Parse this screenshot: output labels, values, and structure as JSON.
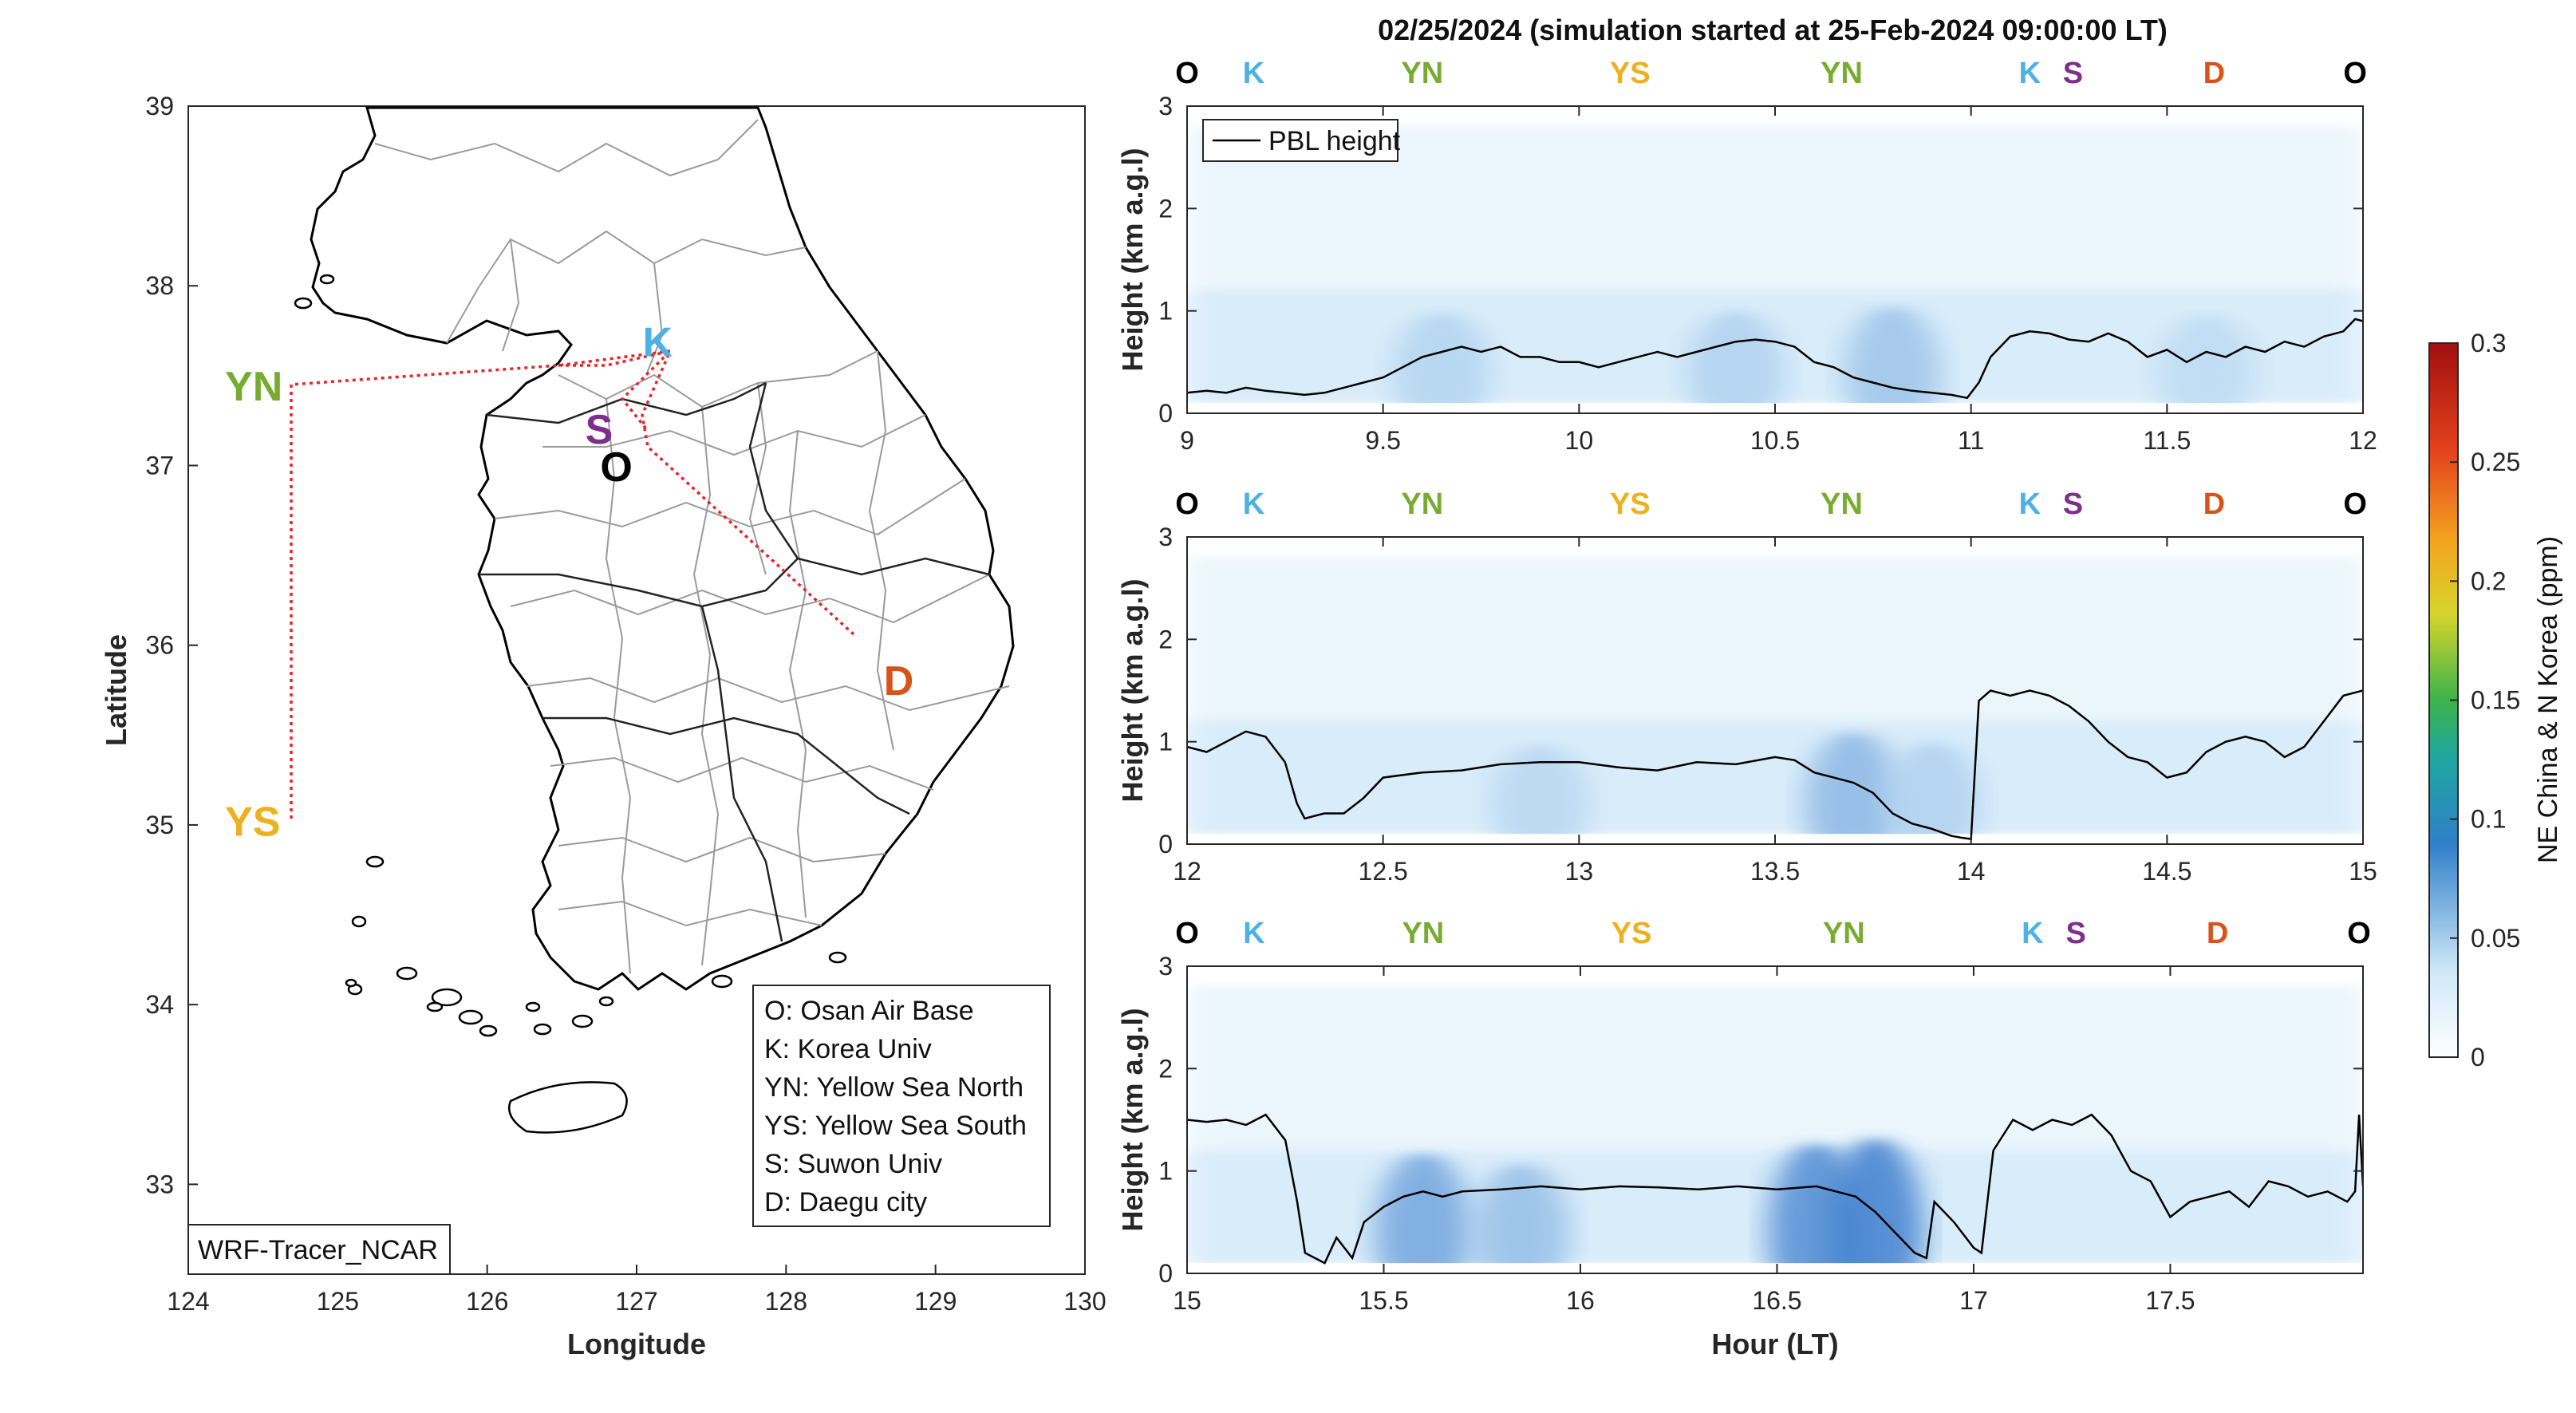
{
  "title": "02/25/2024 (simulation started at 25-Feb-2024 09:00:00 LT)",
  "colors": {
    "O": "#000000",
    "K": "#4db0e6",
    "YN": "#77ac30",
    "YS": "#edb120",
    "S": "#7e2f8e",
    "D": "#d95319",
    "route": "#e8242a",
    "pbl": "#000000"
  },
  "map": {
    "xlabel": "Longitude",
    "ylabel": "Latitude",
    "xlim": [
      124,
      130
    ],
    "ylim": [
      32.5,
      39
    ],
    "xticks": [
      "124",
      "125",
      "126",
      "127",
      "128",
      "129",
      "130"
    ],
    "yticks": [
      "33",
      "34",
      "35",
      "36",
      "37",
      "38",
      "39"
    ],
    "model_label": "WRF-Tracer_NCAR",
    "sites": [
      {
        "code": "YN",
        "lon": 124.7,
        "lat": 37.45
      },
      {
        "code": "YS",
        "lon": 124.7,
        "lat": 35.05
      },
      {
        "code": "K",
        "lon": 127.2,
        "lat": 37.6
      },
      {
        "code": "S",
        "lon": 126.95,
        "lat": 37.3
      },
      {
        "code": "O",
        "lon": 127.05,
        "lat": 37.1
      },
      {
        "code": "D",
        "lon": 128.6,
        "lat": 35.9
      }
    ],
    "legend": [
      "O: Osan Air Base",
      "K: Korea Univ",
      "YN: Yellow Sea North",
      "YS: Yellow Sea South",
      "S: Suwon Univ",
      "D: Daegu city"
    ]
  },
  "chart_data": [
    {
      "type": "line",
      "series": [
        {
          "name": "PBL height",
          "x": [
            9.0,
            9.05,
            9.1,
            9.15,
            9.2,
            9.25,
            9.3,
            9.35,
            9.4,
            9.45,
            9.5,
            9.55,
            9.6,
            9.65,
            9.7,
            9.75,
            9.8,
            9.85,
            9.9,
            9.95,
            10.0,
            10.05,
            10.1,
            10.15,
            10.2,
            10.25,
            10.3,
            10.35,
            10.4,
            10.45,
            10.5,
            10.55,
            10.6,
            10.65,
            10.7,
            10.75,
            10.8,
            10.85,
            10.9,
            10.95,
            10.99,
            11.02,
            11.05,
            11.1,
            11.15,
            11.2,
            11.25,
            11.3,
            11.35,
            11.4,
            11.45,
            11.5,
            11.55,
            11.6,
            11.65,
            11.7,
            11.75,
            11.8,
            11.85,
            11.9,
            11.95,
            11.98,
            12.0
          ],
          "y": [
            0.2,
            0.22,
            0.2,
            0.25,
            0.22,
            0.2,
            0.18,
            0.2,
            0.25,
            0.3,
            0.35,
            0.45,
            0.55,
            0.6,
            0.65,
            0.6,
            0.65,
            0.55,
            0.55,
            0.5,
            0.5,
            0.45,
            0.5,
            0.55,
            0.6,
            0.55,
            0.6,
            0.65,
            0.7,
            0.72,
            0.7,
            0.65,
            0.5,
            0.45,
            0.35,
            0.3,
            0.25,
            0.22,
            0.2,
            0.18,
            0.15,
            0.3,
            0.55,
            0.75,
            0.8,
            0.78,
            0.72,
            0.7,
            0.78,
            0.7,
            0.55,
            0.62,
            0.5,
            0.6,
            0.55,
            0.65,
            0.6,
            0.7,
            0.65,
            0.75,
            0.8,
            0.92,
            0.9
          ]
        }
      ],
      "xlim": [
        9,
        12
      ],
      "ylim": [
        0,
        3
      ],
      "xticks": [
        "9",
        "9.5",
        "10",
        "10.5",
        "11",
        "11.5",
        "12"
      ],
      "yticks": [
        "0",
        "1",
        "2",
        "3"
      ],
      "ylabel": "Height (km a.g.l)",
      "route_labels": [
        {
          "code": "O",
          "x": 9.0
        },
        {
          "code": "K",
          "x": 9.17
        },
        {
          "code": "YN",
          "x": 9.6
        },
        {
          "code": "YS",
          "x": 10.13
        },
        {
          "code": "YN",
          "x": 10.67
        },
        {
          "code": "K",
          "x": 11.15
        },
        {
          "code": "S",
          "x": 11.26
        },
        {
          "code": "D",
          "x": 11.62
        },
        {
          "code": "O",
          "x": 11.98
        }
      ],
      "tracer": [
        {
          "x": 9.65,
          "amp": 0.018
        },
        {
          "x": 10.4,
          "amp": 0.02
        },
        {
          "x": 10.8,
          "amp": 0.03
        },
        {
          "x": 11.6,
          "amp": 0.012
        }
      ]
    },
    {
      "type": "line",
      "series": [
        {
          "name": "PBL height",
          "x": [
            12.0,
            12.05,
            12.1,
            12.15,
            12.2,
            12.25,
            12.28,
            12.3,
            12.35,
            12.4,
            12.45,
            12.5,
            12.6,
            12.7,
            12.8,
            12.9,
            13.0,
            13.1,
            13.2,
            13.3,
            13.4,
            13.5,
            13.55,
            13.6,
            13.65,
            13.7,
            13.75,
            13.8,
            13.85,
            13.9,
            13.95,
            13.98,
            14.0,
            14.02,
            14.05,
            14.1,
            14.15,
            14.2,
            14.25,
            14.3,
            14.35,
            14.4,
            14.45,
            14.5,
            14.55,
            14.6,
            14.65,
            14.7,
            14.75,
            14.8,
            14.85,
            14.9,
            14.95,
            15.0
          ],
          "y": [
            0.95,
            0.9,
            1.0,
            1.1,
            1.05,
            0.8,
            0.4,
            0.25,
            0.3,
            0.3,
            0.45,
            0.65,
            0.7,
            0.72,
            0.78,
            0.8,
            0.8,
            0.75,
            0.72,
            0.8,
            0.78,
            0.85,
            0.82,
            0.7,
            0.65,
            0.6,
            0.5,
            0.3,
            0.2,
            0.15,
            0.08,
            0.06,
            0.05,
            1.4,
            1.5,
            1.45,
            1.5,
            1.45,
            1.35,
            1.2,
            1.0,
            0.85,
            0.8,
            0.65,
            0.7,
            0.9,
            1.0,
            1.05,
            1.0,
            0.85,
            0.95,
            1.2,
            1.45,
            1.5
          ]
        }
      ],
      "xlim": [
        12,
        15
      ],
      "ylim": [
        0,
        3
      ],
      "xticks": [
        "12",
        "12.5",
        "13",
        "13.5",
        "14",
        "14.5",
        "15"
      ],
      "yticks": [
        "0",
        "1",
        "2",
        "3"
      ],
      "ylabel": "Height (km a.g.l)",
      "route_labels": [
        {
          "code": "O",
          "x": 12.0
        },
        {
          "code": "K",
          "x": 12.17
        },
        {
          "code": "YN",
          "x": 12.6
        },
        {
          "code": "YS",
          "x": 13.13
        },
        {
          "code": "YN",
          "x": 13.67
        },
        {
          "code": "K",
          "x": 14.15
        },
        {
          "code": "S",
          "x": 14.26
        },
        {
          "code": "D",
          "x": 14.62
        },
        {
          "code": "O",
          "x": 14.98
        }
      ],
      "tracer": [
        {
          "x": 12.9,
          "amp": 0.015
        },
        {
          "x": 13.7,
          "amp": 0.04
        },
        {
          "x": 13.9,
          "amp": 0.02
        }
      ]
    },
    {
      "type": "line",
      "series": [
        {
          "name": "PBL height",
          "x": [
            15.0,
            15.05,
            15.1,
            15.15,
            15.2,
            15.25,
            15.28,
            15.3,
            15.35,
            15.38,
            15.42,
            15.45,
            15.5,
            15.55,
            15.6,
            15.65,
            15.7,
            15.8,
            15.9,
            16.0,
            16.1,
            16.2,
            16.3,
            16.4,
            16.5,
            16.6,
            16.65,
            16.7,
            16.75,
            16.8,
            16.85,
            16.88,
            16.9,
            16.95,
            17.0,
            17.02,
            17.05,
            17.1,
            17.15,
            17.2,
            17.25,
            17.3,
            17.35,
            17.4,
            17.45,
            17.5,
            17.55,
            17.6,
            17.65,
            17.7,
            17.75,
            17.8,
            17.85,
            17.9,
            17.95,
            17.97,
            17.98,
            17.99
          ],
          "y": [
            1.5,
            1.48,
            1.5,
            1.45,
            1.55,
            1.3,
            0.7,
            0.2,
            0.1,
            0.35,
            0.15,
            0.5,
            0.65,
            0.75,
            0.8,
            0.75,
            0.8,
            0.82,
            0.85,
            0.82,
            0.85,
            0.84,
            0.82,
            0.85,
            0.82,
            0.85,
            0.8,
            0.75,
            0.6,
            0.4,
            0.2,
            0.15,
            0.7,
            0.5,
            0.25,
            0.2,
            1.2,
            1.5,
            1.4,
            1.5,
            1.45,
            1.55,
            1.35,
            1.0,
            0.9,
            0.55,
            0.7,
            0.75,
            0.8,
            0.65,
            0.9,
            0.85,
            0.75,
            0.8,
            0.7,
            0.8,
            1.55,
            0.85
          ]
        }
      ],
      "xlim": [
        15,
        17.99
      ],
      "ylim": [
        0,
        3
      ],
      "xticks": [
        "15",
        "15.5",
        "16",
        "16.5",
        "17",
        "17.5"
      ],
      "yticks": [
        "0",
        "1",
        "2",
        "3"
      ],
      "ylabel": "Height (km a.g.l)",
      "xlabel": "Hour (LT)",
      "route_labels": [
        {
          "code": "O",
          "x": 15.0
        },
        {
          "code": "K",
          "x": 15.17
        },
        {
          "code": "YN",
          "x": 15.6
        },
        {
          "code": "YS",
          "x": 16.13
        },
        {
          "code": "YN",
          "x": 16.67
        },
        {
          "code": "K",
          "x": 17.15
        },
        {
          "code": "S",
          "x": 17.26
        },
        {
          "code": "D",
          "x": 17.62
        },
        {
          "code": "O",
          "x": 17.98
        }
      ],
      "tracer": [
        {
          "x": 15.6,
          "amp": 0.055
        },
        {
          "x": 15.85,
          "amp": 0.035
        },
        {
          "x": 16.6,
          "amp": 0.075
        },
        {
          "x": 16.75,
          "amp": 0.085
        }
      ]
    }
  ],
  "colorbar": {
    "label": "NE China & N Korea (ppm)",
    "ticks": [
      "0",
      "0.05",
      "0.1",
      "0.15",
      "0.2",
      "0.25",
      "0.3"
    ],
    "range": [
      0,
      0.3
    ]
  },
  "legend_pbl": "PBL height"
}
